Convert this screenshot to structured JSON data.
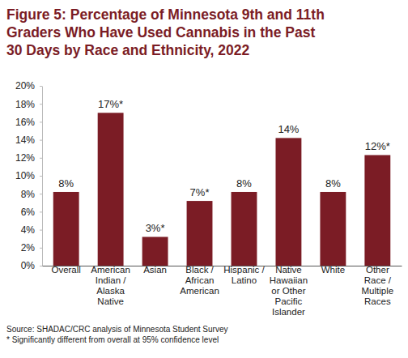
{
  "chart_data": {
    "type": "bar",
    "title": "Figure 5: Percentage of Minnesota 9th and 11th Graders Who Have Used Cannabis in the Past 30 Days by Race and Ethnicity, 2022",
    "categories": [
      "Overall",
      "American Indian / Alaska Native",
      "Asian",
      "Black / African American",
      "Hispanic / Latino",
      "Native Hawaiian or Other Pacific Islander",
      "White",
      "Other Race / Multiple Races"
    ],
    "values": [
      8.2,
      17,
      3.2,
      7.2,
      8.2,
      14.2,
      8.2,
      12.3
    ],
    "value_labels": [
      "8%",
      "17%*",
      "3%*",
      "7%*",
      "8%",
      "14%",
      "8%",
      "12%*"
    ],
    "data_labels": true,
    "color": "#7b1c25",
    "ylim": [
      0,
      20
    ],
    "yticks": [
      {
        "value": 0,
        "label": "0%"
      },
      {
        "value": 2,
        "label": "2%"
      },
      {
        "value": 4,
        "label": "4%"
      },
      {
        "value": 6,
        "label": "6%"
      },
      {
        "value": 8,
        "label": "8%"
      },
      {
        "value": 10,
        "label": "10%"
      },
      {
        "value": 12,
        "label": "12%"
      },
      {
        "value": 14,
        "label": "14%"
      },
      {
        "value": 16,
        "label": "16%"
      },
      {
        "value": 18,
        "label": "18%"
      },
      {
        "value": 20,
        "label": "20%"
      }
    ],
    "grid": false,
    "annotations": [
      "Source: SHADAC/CRC analysis of Minnesota Student Survey",
      "* Significantly different from overall at 95% confidence level"
    ]
  }
}
